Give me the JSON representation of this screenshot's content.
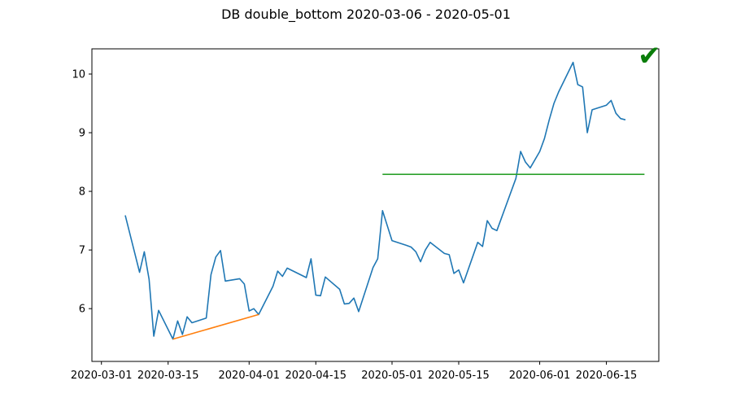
{
  "chart_data": {
    "type": "line",
    "title": "DB double_bottom 2020-03-06 - 2020-05-01",
    "xlabel": "",
    "ylabel": "",
    "x_axis_type": "date",
    "xlim": [
      "2020-02-28",
      "2020-06-26"
    ],
    "ylim": [
      5.1,
      10.43
    ],
    "x_ticks": [
      "2020-03-01",
      "2020-03-15",
      "2020-04-01",
      "2020-04-15",
      "2020-05-01",
      "2020-05-15",
      "2020-06-01",
      "2020-06-15"
    ],
    "y_ticks": [
      6,
      7,
      8,
      9,
      10
    ],
    "grid": false,
    "legend": "none",
    "series": [
      {
        "color": "#1f77b4",
        "points": [
          [
            "2020-03-06",
            7.59
          ],
          [
            "2020-03-09",
            6.62
          ],
          [
            "2020-03-10",
            6.97
          ],
          [
            "2020-03-11",
            6.5
          ],
          [
            "2020-03-12",
            5.53
          ],
          [
            "2020-03-13",
            5.97
          ],
          [
            "2020-03-16",
            5.48
          ],
          [
            "2020-03-17",
            5.79
          ],
          [
            "2020-03-18",
            5.56
          ],
          [
            "2020-03-19",
            5.86
          ],
          [
            "2020-03-20",
            5.76
          ],
          [
            "2020-03-23",
            5.84
          ],
          [
            "2020-03-24",
            6.58
          ],
          [
            "2020-03-25",
            6.88
          ],
          [
            "2020-03-26",
            6.99
          ],
          [
            "2020-03-27",
            6.47
          ],
          [
            "2020-03-30",
            6.51
          ],
          [
            "2020-03-31",
            6.42
          ],
          [
            "2020-04-01",
            5.96
          ],
          [
            "2020-04-02",
            6.0
          ],
          [
            "2020-04-03",
            5.9
          ],
          [
            "2020-04-06",
            6.38
          ],
          [
            "2020-04-07",
            6.64
          ],
          [
            "2020-04-08",
            6.55
          ],
          [
            "2020-04-09",
            6.69
          ],
          [
            "2020-04-13",
            6.53
          ],
          [
            "2020-04-14",
            6.85
          ],
          [
            "2020-04-15",
            6.23
          ],
          [
            "2020-04-16",
            6.22
          ],
          [
            "2020-04-17",
            6.54
          ],
          [
            "2020-04-20",
            6.33
          ],
          [
            "2020-04-21",
            6.08
          ],
          [
            "2020-04-22",
            6.09
          ],
          [
            "2020-04-23",
            6.18
          ],
          [
            "2020-04-24",
            5.95
          ],
          [
            "2020-04-27",
            6.7
          ],
          [
            "2020-04-28",
            6.85
          ],
          [
            "2020-04-29",
            7.67
          ],
          [
            "2020-05-01",
            7.16
          ],
          [
            "2020-05-04",
            7.08
          ],
          [
            "2020-05-05",
            7.05
          ],
          [
            "2020-05-06",
            6.97
          ],
          [
            "2020-05-07",
            6.8
          ],
          [
            "2020-05-08",
            7.0
          ],
          [
            "2020-05-09",
            7.13
          ],
          [
            "2020-05-12",
            6.94
          ],
          [
            "2020-05-13",
            6.92
          ],
          [
            "2020-05-14",
            6.6
          ],
          [
            "2020-05-15",
            6.66
          ],
          [
            "2020-05-16",
            6.44
          ],
          [
            "2020-05-19",
            7.13
          ],
          [
            "2020-05-20",
            7.06
          ],
          [
            "2020-05-21",
            7.5
          ],
          [
            "2020-05-22",
            7.37
          ],
          [
            "2020-05-23",
            7.33
          ],
          [
            "2020-05-27",
            8.22
          ],
          [
            "2020-05-28",
            8.68
          ],
          [
            "2020-05-29",
            8.5
          ],
          [
            "2020-05-30",
            8.4
          ],
          [
            "2020-06-01",
            8.68
          ],
          [
            "2020-06-02",
            8.9
          ],
          [
            "2020-06-03",
            9.22
          ],
          [
            "2020-06-04",
            9.5
          ],
          [
            "2020-06-05",
            9.7
          ],
          [
            "2020-06-08",
            10.2
          ],
          [
            "2020-06-09",
            9.82
          ],
          [
            "2020-06-10",
            9.78
          ],
          [
            "2020-06-11",
            9.0
          ],
          [
            "2020-06-12",
            9.39
          ],
          [
            "2020-06-15",
            9.47
          ],
          [
            "2020-06-16",
            9.55
          ],
          [
            "2020-06-17",
            9.33
          ],
          [
            "2020-06-18",
            9.24
          ],
          [
            "2020-06-19",
            9.22
          ]
        ]
      },
      {
        "color": "#ff7f0e",
        "points": [
          [
            "2020-03-16",
            5.48
          ],
          [
            "2020-04-03",
            5.9
          ]
        ]
      },
      {
        "color": "#2ca02c",
        "points": [
          [
            "2020-04-29",
            8.29
          ],
          [
            "2020-06-23",
            8.29
          ]
        ]
      }
    ],
    "status_icon": "check-mark-icon",
    "status_color": "#0a7d0a"
  }
}
